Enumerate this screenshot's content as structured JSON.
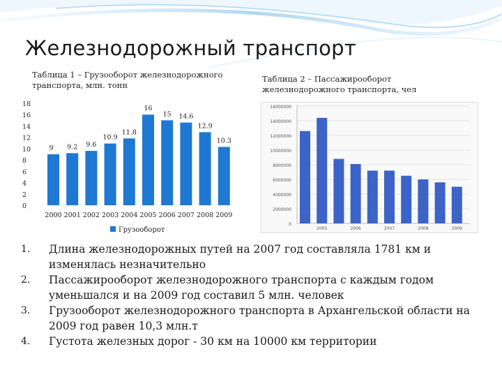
{
  "slide": {
    "title": "Железнодорожный транспорт",
    "table1_caption": "Таблица 1 – Грузооборот железнодорожного транспорта, млн. тонн",
    "table2_caption": "Таблица 2 – Пассажирооборот железнодорожного транспорта, чел",
    "colors": {
      "bar_primary": "#1f78d1",
      "bar_secondary": "#3c63c8",
      "title_text": "#1a1a1a"
    }
  },
  "chart_data": [
    {
      "type": "bar",
      "title": "",
      "xlabel": "",
      "ylabel": "",
      "categories": [
        "2000",
        "2001",
        "2002",
        "2003",
        "2004",
        "2005",
        "2006",
        "2007",
        "2008",
        "2009"
      ],
      "series": [
        {
          "name": "Грузооборот",
          "values": [
            9,
            9.2,
            9.6,
            10.9,
            11.8,
            16,
            15,
            14.6,
            12.9,
            10.3
          ]
        }
      ],
      "data_labels": [
        "9",
        "9.2",
        "9.6",
        "10.9",
        "11.8",
        "16",
        "15",
        "14.6",
        "12.9",
        "10.3"
      ],
      "ylim": [
        0,
        18
      ],
      "yticks": [
        "0",
        "2",
        "4",
        "6",
        "8",
        "10",
        "12",
        "14",
        "16",
        "18"
      ],
      "grid": false,
      "legend": "bottom"
    },
    {
      "type": "bar",
      "title": "",
      "xlabel": "",
      "ylabel": "",
      "categories": [
        "",
        "2005",
        "",
        "2006",
        "",
        "2007",
        "",
        "2008",
        "",
        "2009"
      ],
      "series": [
        {
          "name": "",
          "values": [
            12600000,
            14400000,
            8800000,
            8100000,
            7200000,
            7200000,
            6500000,
            6000000,
            5600000,
            5000000
          ]
        }
      ],
      "ylim": [
        0,
        16000000
      ],
      "yticks": [
        "0",
        "2000000",
        "4000000",
        "6000000",
        "8000000",
        "10000000",
        "12000000",
        "14000000",
        "16000000"
      ],
      "grid": true,
      "legend": "none"
    }
  ],
  "facts": [
    {
      "num": "1.",
      "text": "Длина железнодорожных путей на 2007 год составляла 1781 км и изменялась незначительно"
    },
    {
      "num": "2.",
      "text": "Пассажирооборот железнодорожного транспорта с каждым годом уменьшался и на 2009 год составил 5 млн. человек"
    },
    {
      "num": "3.",
      "text": "Грузооборот железнодорожного транспорта в Архангельской области на 2009 год равен 10,3 млн.т"
    },
    {
      "num": "4.",
      "text": "Густота железных дорог - 30 км на 10000 км территории"
    }
  ]
}
